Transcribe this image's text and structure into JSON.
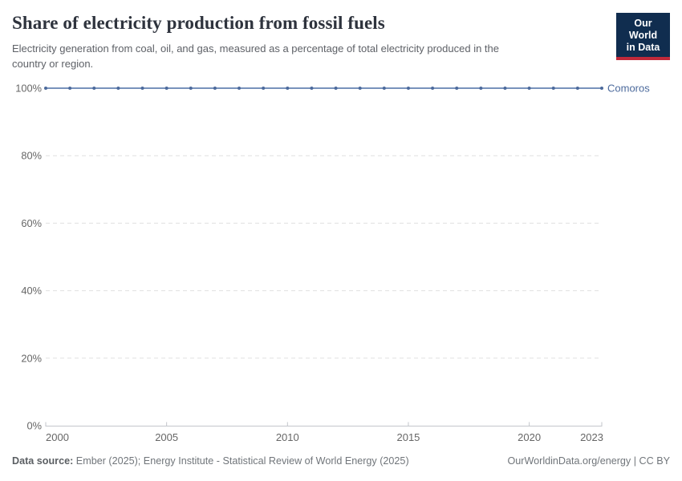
{
  "header": {
    "title": "Share of electricity production from fossil fuels",
    "subtitle_lines": [
      "Electricity generation from coal, oil, and gas, measured as a percentage of total electricity produced in the",
      "country or region."
    ],
    "logo": {
      "line1": "Our World",
      "line2": "in Data"
    }
  },
  "colors": {
    "line_stroke": "#6583B2",
    "marker": "#4C6A9C",
    "entity_label": "#4C6A9C",
    "grid": "#E0E0E0",
    "axis": "#C3C6CB",
    "tick_text": "#666666",
    "logo_bg": "#102D4F",
    "logo_accent": "#C0293A"
  },
  "chart_data": {
    "type": "line",
    "title": "Share of electricity production from fossil fuels",
    "xlabel": "",
    "ylabel": "",
    "x": [
      2000,
      2001,
      2002,
      2003,
      2004,
      2005,
      2006,
      2007,
      2008,
      2009,
      2010,
      2011,
      2012,
      2013,
      2014,
      2015,
      2016,
      2017,
      2018,
      2019,
      2020,
      2021,
      2022,
      2023
    ],
    "series": [
      {
        "name": "Comoros",
        "values": [
          100,
          100,
          100,
          100,
          100,
          100,
          100,
          100,
          100,
          100,
          100,
          100,
          100,
          100,
          100,
          100,
          100,
          100,
          100,
          100,
          100,
          100,
          100,
          100
        ]
      }
    ],
    "xlim": [
      2000,
      2023
    ],
    "ylim": [
      0,
      100
    ],
    "x_ticks": [
      2000,
      2005,
      2010,
      2015,
      2020,
      2023
    ],
    "x_tick_labels": [
      "2000",
      "2005",
      "2010",
      "2015",
      "2020",
      "2023"
    ],
    "y_ticks": [
      0,
      20,
      40,
      60,
      80,
      100
    ],
    "y_tick_labels": [
      "0%",
      "20%",
      "40%",
      "60%",
      "80%",
      "100%"
    ],
    "grid": "horizontal-dashed",
    "legend_position": "right-of-line-end"
  },
  "footer": {
    "source_label": "Data source:",
    "source_text": "Ember (2025); Energy Institute - Statistical Review of World Energy (2025)",
    "credit": "OurWorldinData.org/energy | CC BY"
  }
}
